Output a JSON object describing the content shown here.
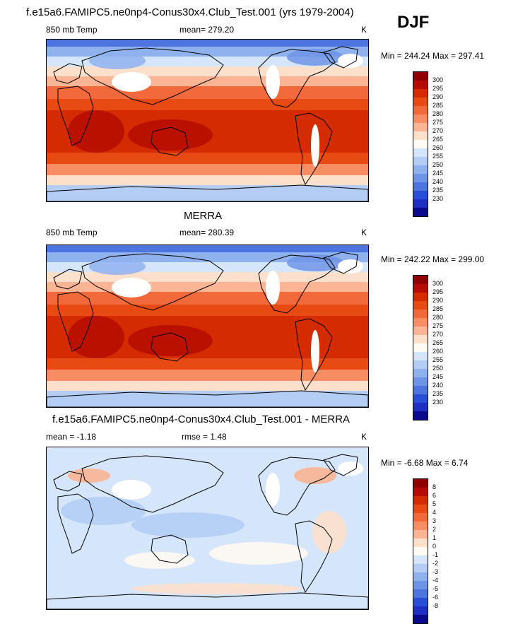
{
  "header": {
    "djf": "DJF"
  },
  "panels": [
    {
      "title": "f.e15a6.FAMIPC5.ne0np4-Conus30x4.Club_Test.001 (yrs 1979-2004)",
      "left_label": "850 mb Temp",
      "center_label": "mean= 279.20",
      "units": "K",
      "minmax": "Min = 244.24 Max = 297.41",
      "colorbar_labels": [
        "300",
        "295",
        "290",
        "285",
        "280",
        "275",
        "270",
        "265",
        "260",
        "255",
        "250",
        "245",
        "240",
        "235",
        "230"
      ],
      "colorbar_colors": [
        "#8f0000",
        "#b40c00",
        "#d42b00",
        "#e84a14",
        "#f26a3c",
        "#f78d62",
        "#fbb494",
        "#fde0cc",
        "#fffaf2",
        "#d6e6fa",
        "#b3cdf5",
        "#8fb1ee",
        "#6e94e6",
        "#4d74df",
        "#2a4fd6",
        "#1e2fc2",
        "#0a0a8c"
      ]
    },
    {
      "title": "MERRA",
      "left_label": "850 mb Temp",
      "center_label": "mean= 280.39",
      "units": "K",
      "minmax": "Min = 242.22 Max = 299.00",
      "colorbar_labels": [
        "300",
        "295",
        "290",
        "285",
        "280",
        "275",
        "270",
        "265",
        "260",
        "255",
        "250",
        "245",
        "240",
        "235",
        "230"
      ],
      "colorbar_colors": [
        "#8f0000",
        "#b40c00",
        "#d42b00",
        "#e84a14",
        "#f26a3c",
        "#f78d62",
        "#fbb494",
        "#fde0cc",
        "#fffaf2",
        "#d6e6fa",
        "#b3cdf5",
        "#8fb1ee",
        "#6e94e6",
        "#4d74df",
        "#2a4fd6",
        "#1e2fc2",
        "#0a0a8c"
      ]
    },
    {
      "title": "f.e15a6.FAMIPC5.ne0np4-Conus30x4.Club_Test.001 - MERRA",
      "left_label": "mean =  -1.18",
      "center_label": "rmse =   1.48",
      "units": "K",
      "minmax": "Min =  -6.68 Max =   6.74",
      "colorbar_labels": [
        "8",
        "6",
        "5",
        "4",
        "3",
        "2",
        "1",
        "0",
        "-1",
        "-2",
        "-3",
        "-4",
        "-5",
        "-6",
        "-8"
      ],
      "colorbar_colors": [
        "#8f0000",
        "#b40c00",
        "#d42b00",
        "#e84a14",
        "#f26a3c",
        "#f78d62",
        "#fbb494",
        "#fde0cc",
        "#fffaf2",
        "#d6e6fa",
        "#b3cdf5",
        "#8fb1ee",
        "#6e94e6",
        "#4d74df",
        "#2a4fd6",
        "#1e2fc2",
        "#0a0a8c"
      ]
    }
  ]
}
